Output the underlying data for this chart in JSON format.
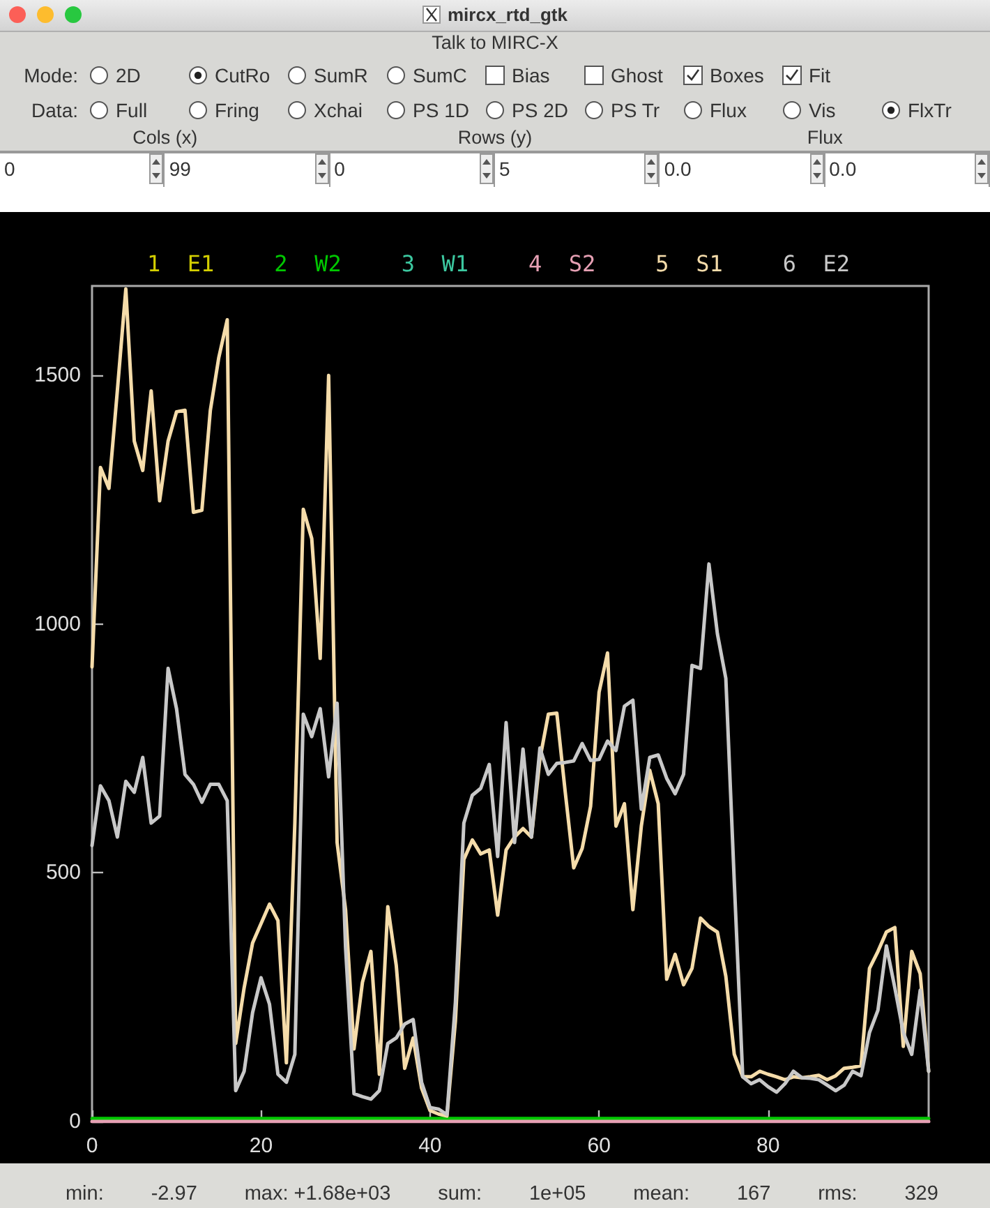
{
  "chart_data": {
    "type": "line",
    "title": "mircx_rtd_gtk",
    "subtitle": "Talk to MIRC-X",
    "x": [
      0,
      1,
      2,
      3,
      4,
      5,
      6,
      7,
      8,
      9,
      10,
      11,
      12,
      13,
      14,
      15,
      16,
      17,
      18,
      19,
      20,
      21,
      22,
      23,
      24,
      25,
      26,
      27,
      28,
      29,
      30,
      31,
      32,
      33,
      34,
      35,
      36,
      37,
      38,
      39,
      40,
      41,
      42,
      43,
      44,
      45,
      46,
      47,
      48,
      49,
      50,
      51,
      52,
      53,
      54,
      55,
      56,
      57,
      58,
      59,
      60,
      61,
      62,
      63,
      64,
      65,
      66,
      67,
      68,
      69,
      70,
      71,
      72,
      73,
      74,
      75,
      76,
      77,
      78,
      79,
      80,
      81,
      82,
      83,
      84,
      85,
      86,
      87,
      88,
      89,
      90,
      91,
      92,
      93,
      94,
      95,
      96,
      97,
      98,
      99
    ],
    "series": [
      {
        "name": "1  E1",
        "color": "#d4cf00",
        "values": [
          null,
          null,
          null,
          null,
          null,
          null,
          null,
          null,
          null,
          null,
          null,
          null,
          null,
          null,
          null,
          null,
          null,
          null,
          null,
          null,
          null,
          null,
          null,
          null,
          null,
          null,
          null,
          null,
          null,
          null,
          null,
          null,
          null,
          null,
          null,
          null,
          null,
          null,
          null,
          null,
          null,
          null,
          null,
          null,
          null,
          null,
          null,
          null,
          null,
          null,
          null,
          null,
          null,
          null,
          null,
          null,
          null,
          null,
          null,
          null,
          null,
          null,
          null,
          null,
          null,
          null,
          null,
          null,
          null,
          null,
          null,
          null,
          null,
          null,
          null,
          null,
          null,
          null,
          null,
          null,
          null,
          null,
          null,
          null,
          null,
          null,
          null,
          null,
          null,
          null,
          null,
          null,
          null,
          null,
          null,
          null,
          null,
          null,
          null,
          null
        ]
      },
      {
        "name": "2  W2",
        "color": "#00c800",
        "values": [
          6,
          6,
          6,
          6,
          6,
          6,
          6,
          6,
          6,
          6,
          6,
          6,
          6,
          6,
          6,
          6,
          6,
          6,
          6,
          6,
          6,
          6,
          6,
          6,
          6,
          6,
          6,
          6,
          6,
          6,
          6,
          6,
          6,
          6,
          6,
          6,
          6,
          6,
          6,
          6,
          6,
          6,
          6,
          6,
          6,
          6,
          6,
          6,
          6,
          6,
          6,
          6,
          6,
          6,
          6,
          6,
          6,
          6,
          6,
          6,
          6,
          6,
          6,
          6,
          6,
          6,
          6,
          6,
          6,
          6,
          6,
          6,
          6,
          6,
          6,
          6,
          6,
          6,
          6,
          6,
          6,
          6,
          6,
          6,
          6,
          6,
          6,
          6,
          6,
          6,
          6,
          6,
          6,
          6,
          6,
          6,
          6,
          6,
          6,
          6
        ]
      },
      {
        "name": "3  W1",
        "color": "#3cc8a0",
        "values": [
          null,
          null,
          null,
          null,
          null,
          null,
          null,
          null,
          null,
          null,
          null,
          null,
          null,
          null,
          null,
          null,
          null,
          null,
          null,
          null,
          null,
          null,
          null,
          null,
          null,
          null,
          null,
          null,
          null,
          null,
          null,
          null,
          null,
          null,
          null,
          null,
          null,
          null,
          null,
          null,
          null,
          null,
          null,
          null,
          null,
          null,
          null,
          null,
          null,
          null,
          null,
          null,
          null,
          null,
          null,
          null,
          null,
          null,
          null,
          null,
          null,
          null,
          null,
          null,
          null,
          null,
          null,
          null,
          null,
          null,
          null,
          null,
          null,
          null,
          null,
          null,
          null,
          null,
          null,
          null,
          null,
          null,
          null,
          null,
          null,
          null,
          null,
          null,
          null,
          null,
          null,
          null,
          null,
          null,
          null,
          null,
          null,
          null,
          null,
          null
        ]
      },
      {
        "name": "4  S2",
        "color": "#e6a0b4",
        "x": [
          0,
          99
        ],
        "values": [
          0,
          0
        ]
      },
      {
        "name": "5  S1",
        "color": "#f5dcaa",
        "values": [
          914,
          1315,
          1273,
          1470,
          1674,
          1368,
          1309,
          1469,
          1248,
          1368,
          1427,
          1430,
          1225,
          1229,
          1430,
          1536,
          1612,
          157,
          269,
          359,
          398,
          437,
          404,
          118,
          600,
          1231,
          1172,
          931,
          1500,
          561,
          426,
          146,
          280,
          342,
          95,
          432,
          314,
          107,
          168,
          67,
          22,
          15,
          11,
          202,
          527,
          566,
          538,
          546,
          415,
          546,
          572,
          589,
          572,
          729,
          819,
          821,
          662,
          510,
          549,
          634,
          863,
          942,
          594,
          639,
          426,
          594,
          706,
          639,
          286,
          336,
          275,
          308,
          409,
          392,
          381,
          292,
          135,
          90,
          90,
          101,
          95,
          90,
          84,
          90,
          88,
          90,
          93,
          84,
          92,
          107,
          109,
          112,
          308,
          342,
          381,
          390,
          151,
          342,
          297,
          101
        ]
      },
      {
        "name": "6  E2",
        "color": "#c8c8c8",
        "values": [
          555,
          675,
          645,
          572,
          684,
          662,
          732,
          600,
          614,
          911,
          830,
          698,
          678,
          642,
          678,
          678,
          645,
          62,
          101,
          219,
          289,
          236,
          95,
          79,
          135,
          819,
          774,
          830,
          693,
          841,
          350,
          56,
          50,
          45,
          62,
          157,
          168,
          196,
          205,
          79,
          28,
          25,
          14,
          240,
          600,
          656,
          670,
          718,
          533,
          802,
          561,
          749,
          572,
          751,
          698,
          720,
          722,
          725,
          760,
          726,
          728,
          765,
          746,
          835,
          847,
          628,
          732,
          737,
          690,
          659,
          698,
          917,
          911,
          1121,
          981,
          891,
          482,
          90,
          76,
          84,
          70,
          59,
          76,
          101,
          88,
          87,
          84,
          73,
          62,
          73,
          101,
          92,
          179,
          224,
          353,
          269,
          179,
          135,
          264,
          101
        ]
      }
    ],
    "xlim": [
      0,
      99
    ],
    "xticks": [
      0,
      20,
      40,
      60,
      80
    ],
    "ylim": [
      0,
      1680
    ],
    "yticks": [
      0,
      500,
      1000,
      1500
    ],
    "grid": false,
    "legend": "top",
    "marker": "none",
    "line_style": "solid",
    "annotations": [
      "Mode:",
      "2D",
      "CutRo",
      "SumR",
      "SumC",
      "Bias",
      "Ghost",
      "Boxes",
      "Fit",
      "Data:",
      "Full",
      "Fring",
      "Xchai",
      "PS 1D",
      "PS 2D",
      "PS Tr",
      "Flux",
      "Vis",
      "FlxTr",
      "Cols (x)",
      "Rows (y)",
      "Flux",
      "0",
      "99",
      "0",
      "5",
      "0.0",
      "0.0",
      "min:",
      "-2.97",
      "max: +1.68e+03",
      "sum:",
      "1e+05",
      "mean:",
      "167",
      "rms:",
      "329"
    ]
  }
}
